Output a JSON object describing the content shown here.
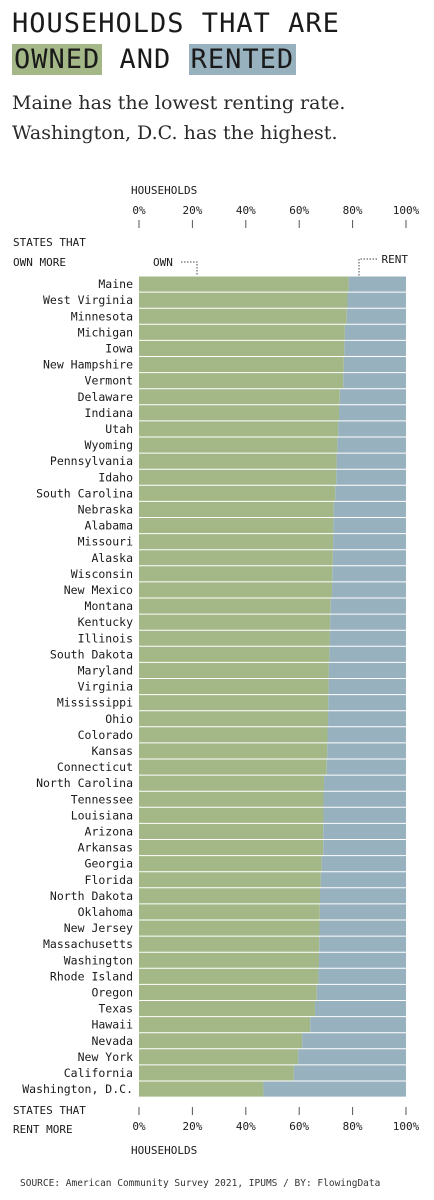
{
  "title": {
    "line1": "HOUSEHOLDS THAT ARE",
    "own_word": "OWNED",
    "and_word": "AND",
    "rent_word": "RENTED"
  },
  "subtitle": {
    "line1": "Maine has the lowest renting rate.",
    "line2": "Washington, D.C. has the highest."
  },
  "colors": {
    "own": "#a3b886",
    "rent": "#98b1bf",
    "own_highlight": "#a3b886",
    "rent_highlight": "#98b1bf"
  },
  "chart_data": {
    "type": "bar",
    "orientation": "horizontal",
    "stacked": true,
    "xlabel": "HOUSEHOLDS",
    "xlim": [
      0,
      100
    ],
    "x_ticks": [
      "0%",
      "20%",
      "40%",
      "60%",
      "80%",
      "100%"
    ],
    "top_label_lines": [
      "STATES THAT",
      "OWN MORE"
    ],
    "bottom_label_lines": [
      "STATES THAT",
      "RENT MORE"
    ],
    "series": [
      {
        "name": "OWN",
        "color": "#a3b886"
      },
      {
        "name": "RENT",
        "color": "#98b1bf"
      }
    ],
    "categories": [
      "Maine",
      "West Virginia",
      "Minnesota",
      "Michigan",
      "Iowa",
      "New Hampshire",
      "Vermont",
      "Delaware",
      "Indiana",
      "Utah",
      "Wyoming",
      "Pennsylvania",
      "Idaho",
      "South Carolina",
      "Nebraska",
      "Alabama",
      "Missouri",
      "Alaska",
      "Wisconsin",
      "New Mexico",
      "Montana",
      "Kentucky",
      "Illinois",
      "South Dakota",
      "Maryland",
      "Virginia",
      "Mississippi",
      "Ohio",
      "Colorado",
      "Kansas",
      "Connecticut",
      "North Carolina",
      "Tennessee",
      "Louisiana",
      "Arizona",
      "Arkansas",
      "Georgia",
      "Florida",
      "North Dakota",
      "Oklahoma",
      "New Jersey",
      "Massachusetts",
      "Washington",
      "Rhode Island",
      "Oregon",
      "Texas",
      "Hawaii",
      "Nevada",
      "New York",
      "California",
      "Washington, D.C."
    ],
    "own_values": [
      78.5,
      78.1,
      77.8,
      77.1,
      76.9,
      76.7,
      76.5,
      75.2,
      74.9,
      74.6,
      74.3,
      74.0,
      73.9,
      73.5,
      72.9,
      72.8,
      72.7,
      72.6,
      72.4,
      72.3,
      71.8,
      71.6,
      71.5,
      71.3,
      71.1,
      71.0,
      70.9,
      70.8,
      70.6,
      70.5,
      70.3,
      69.3,
      69.1,
      69.1,
      69.0,
      69.0,
      68.4,
      68.1,
      67.8,
      67.7,
      67.6,
      67.5,
      67.4,
      67.2,
      66.6,
      65.9,
      64.1,
      61.1,
      59.6,
      58.0,
      46.6
    ],
    "source": "SOURCE: American Community Survey 2021, IPUMS / BY: FlowingData"
  }
}
